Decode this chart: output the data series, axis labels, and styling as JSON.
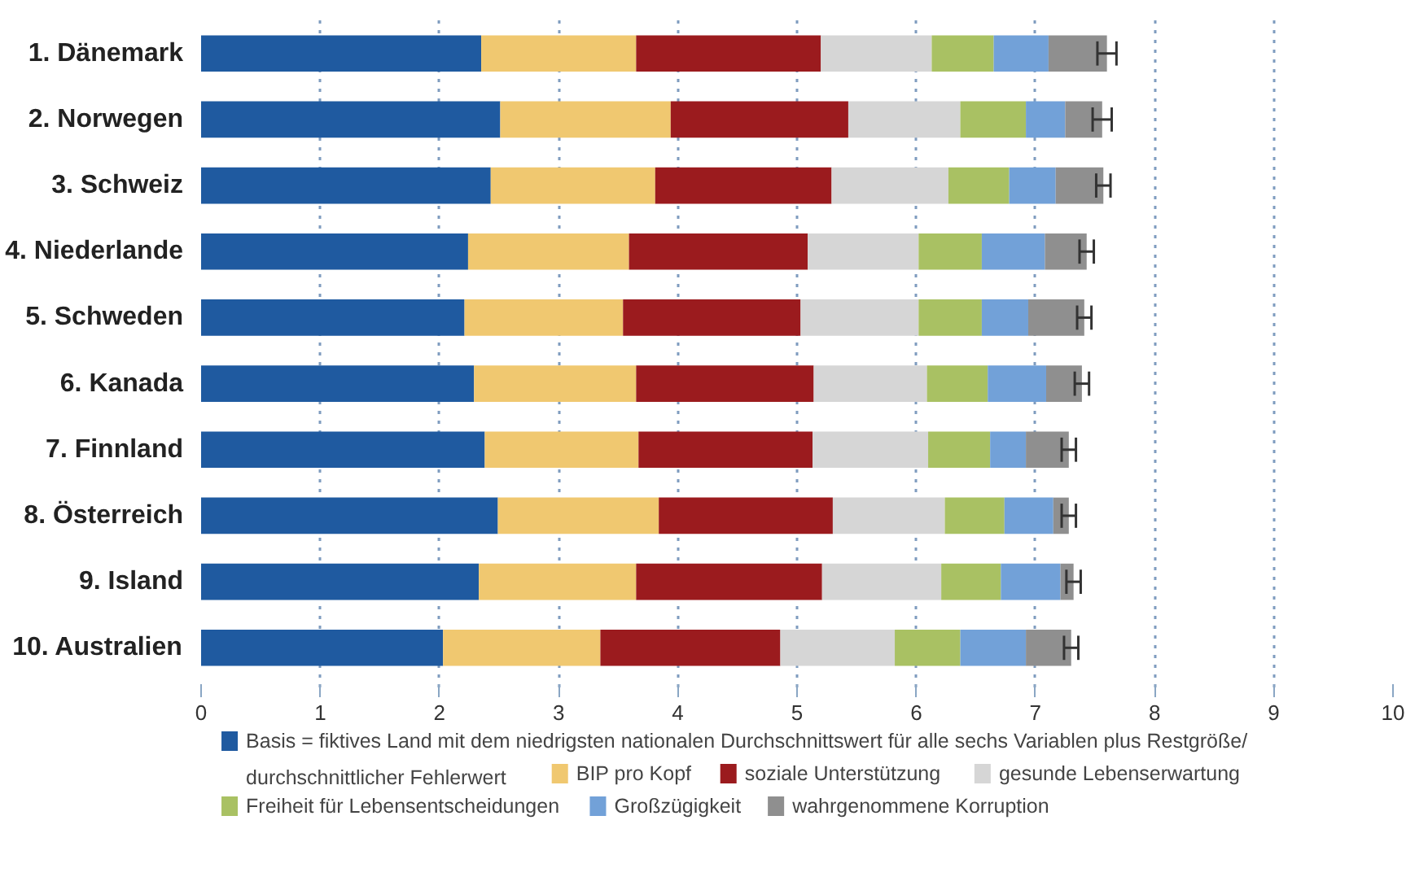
{
  "chart_data": {
    "type": "bar",
    "orientation": "horizontal",
    "stacked": true,
    "categories": [
      "1. Dänemark",
      "2. Norwegen",
      "3. Schweiz",
      "4. Niederlande",
      "5. Schweden",
      "6. Kanada",
      "7. Finnland",
      "8. Österreich",
      "9. Island",
      "10. Australien"
    ],
    "series": [
      {
        "name": "Basis = fiktives Land mit dem niedrigsten nationalen Durchschnittswert für alle sechs Variablen plus Restgröße/ durchschnittlicher Fehlerwert",
        "color": "#1f5aa0",
        "values": [
          2.35,
          2.51,
          2.43,
          2.24,
          2.21,
          2.29,
          2.38,
          2.49,
          2.33,
          2.03
        ]
      },
      {
        "name": "BIP pro Kopf",
        "color": "#f0c870",
        "values": [
          1.3,
          1.43,
          1.38,
          1.35,
          1.33,
          1.36,
          1.29,
          1.35,
          1.32,
          1.32
        ]
      },
      {
        "name": "soziale Unterstützung",
        "color": "#9b1b1e",
        "values": [
          1.55,
          1.49,
          1.48,
          1.5,
          1.49,
          1.49,
          1.46,
          1.46,
          1.56,
          1.51
        ]
      },
      {
        "name": "gesunde Lebenserwartung",
        "color": "#d6d6d6",
        "values": [
          0.93,
          0.94,
          0.98,
          0.93,
          0.99,
          0.95,
          0.97,
          0.94,
          1.0,
          0.96
        ]
      },
      {
        "name": "Freiheit für Lebensentscheidungen",
        "color": "#a9c163",
        "values": [
          0.52,
          0.55,
          0.51,
          0.53,
          0.53,
          0.51,
          0.52,
          0.5,
          0.5,
          0.55
        ]
      },
      {
        "name": "Großzügigkeit",
        "color": "#72a1d8",
        "values": [
          0.46,
          0.33,
          0.39,
          0.53,
          0.39,
          0.49,
          0.3,
          0.41,
          0.5,
          0.55
        ]
      },
      {
        "name": "wahrgenommene Korruption",
        "color": "#8f8f8f",
        "values": [
          0.49,
          0.31,
          0.4,
          0.35,
          0.47,
          0.3,
          0.36,
          0.13,
          0.11,
          0.38
        ],
        "errors": [
          0.08,
          0.08,
          0.06,
          0.06,
          0.06,
          0.06,
          0.06,
          0.06,
          0.06,
          0.06
        ]
      }
    ],
    "xlim": [
      0,
      10
    ],
    "xticks": [
      0,
      1,
      2,
      3,
      4,
      5,
      6,
      7,
      8,
      9,
      10
    ],
    "grid": "x",
    "legend": "bottom"
  }
}
